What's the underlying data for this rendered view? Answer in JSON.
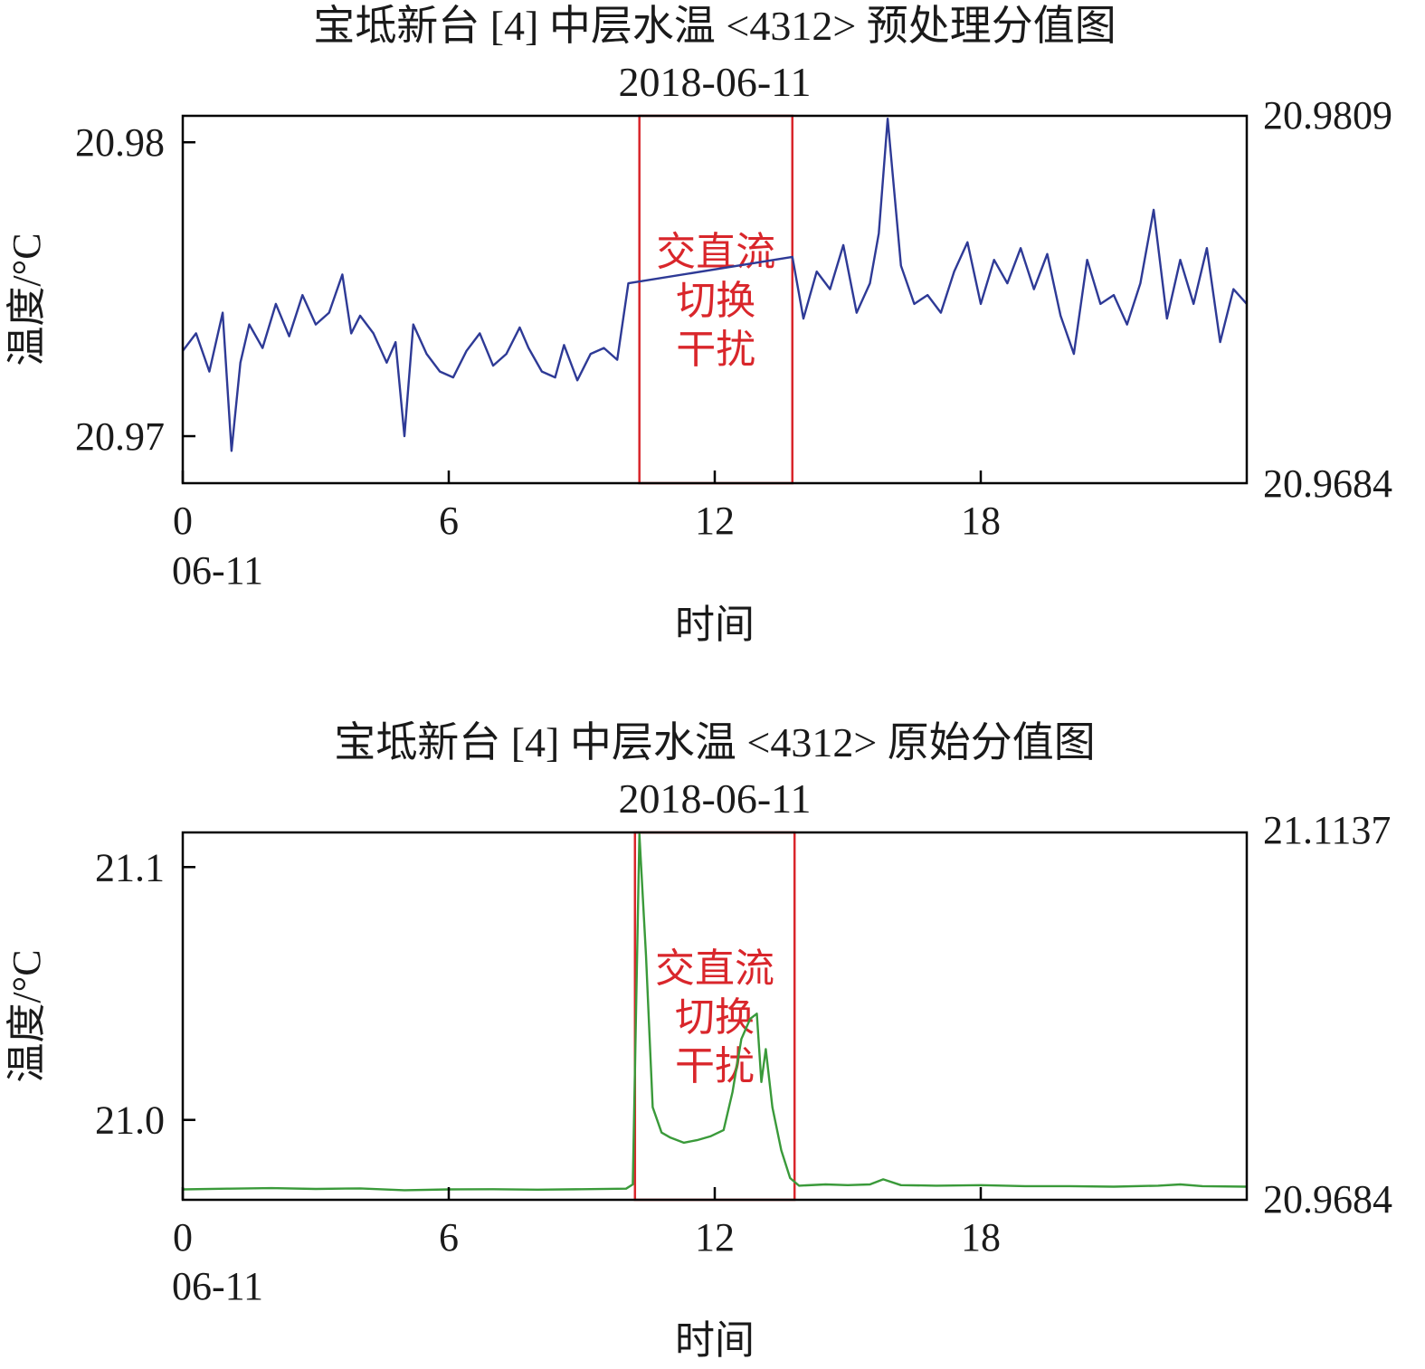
{
  "chart_data": [
    {
      "type": "line",
      "title": "宝坻新台 [4] 中层水温 <4312> 预处理分值图",
      "subtitle": "2018-06-11",
      "xlabel": "时间",
      "ylabel": "温度/°C",
      "x_ticks": [
        "0",
        "6",
        "12",
        "18"
      ],
      "x_tick_values": [
        0,
        6,
        12,
        18
      ],
      "x_date_label": "06-11",
      "y_ticks": [
        "20.98",
        "20.97"
      ],
      "y_tick_values": [
        20.98,
        20.97
      ],
      "xlim": [
        0,
        24
      ],
      "ylim": [
        20.9684,
        20.9809
      ],
      "right_max_label": "20.9809",
      "right_min_label": "20.9684",
      "line_color": "#2e3a96",
      "highlight": {
        "x_range": [
          10.3,
          13.75
        ],
        "label_lines": [
          "交直流",
          "切换",
          "干扰"
        ],
        "color": "#d9262b"
      },
      "series": [
        {
          "x": [
            0,
            0.3,
            0.6,
            0.9,
            1.1,
            1.3,
            1.5,
            1.8,
            2.1,
            2.4,
            2.7,
            3.0,
            3.3,
            3.6,
            3.8,
            4.0,
            4.3,
            4.6,
            4.8,
            5.0,
            5.2,
            5.5,
            5.8,
            6.1,
            6.4,
            6.7,
            7.0,
            7.3,
            7.6,
            7.8,
            8.1,
            8.4,
            8.6,
            8.9,
            9.2,
            9.5,
            9.8,
            10.05,
            13.75,
            14.0,
            14.3,
            14.6,
            14.9,
            15.2,
            15.5,
            15.7,
            15.9,
            16.2,
            16.5,
            16.8,
            17.1,
            17.4,
            17.7,
            18.0,
            18.3,
            18.6,
            18.9,
            19.2,
            19.5,
            19.8,
            20.1,
            20.4,
            20.7,
            21.0,
            21.3,
            21.6,
            21.9,
            22.2,
            22.5,
            22.8,
            23.1,
            23.4,
            23.7,
            24.0
          ],
          "y": [
            20.9729,
            20.9735,
            20.9722,
            20.9742,
            20.9695,
            20.9725,
            20.9738,
            20.973,
            20.9745,
            20.9734,
            20.9748,
            20.9738,
            20.9742,
            20.9755,
            20.9735,
            20.9741,
            20.9735,
            20.9725,
            20.9732,
            20.97,
            20.9738,
            20.9728,
            20.9722,
            20.972,
            20.9729,
            20.9735,
            20.9724,
            20.9728,
            20.9737,
            20.973,
            20.9722,
            20.972,
            20.9731,
            20.9719,
            20.9728,
            20.973,
            20.9726,
            20.9752,
            20.9761,
            20.974,
            20.9756,
            20.975,
            20.9765,
            20.9742,
            20.9752,
            20.9769,
            20.9808,
            20.9758,
            20.9745,
            20.9748,
            20.9742,
            20.9756,
            20.9766,
            20.9745,
            20.976,
            20.9752,
            20.9764,
            20.975,
            20.9762,
            20.9741,
            20.9728,
            20.976,
            20.9745,
            20.9748,
            20.9738,
            20.9752,
            20.9777,
            20.974,
            20.976,
            20.9745,
            20.9764,
            20.9732,
            20.975,
            20.9745
          ]
        }
      ]
    },
    {
      "type": "line",
      "title": "宝坻新台 [4] 中层水温 <4312> 原始分值图",
      "subtitle": "2018-06-11",
      "xlabel": "时间",
      "ylabel": "温度/°C",
      "x_ticks": [
        "0",
        "6",
        "12",
        "18"
      ],
      "x_tick_values": [
        0,
        6,
        12,
        18
      ],
      "x_date_label": "06-11",
      "y_ticks": [
        "21.1",
        "21.0"
      ],
      "y_tick_values": [
        21.1,
        21.0
      ],
      "xlim": [
        0,
        24
      ],
      "ylim": [
        20.9684,
        21.1137
      ],
      "right_max_label": "21.1137",
      "right_min_label": "20.9684",
      "line_color": "#3a9a3a",
      "highlight": {
        "x_range": [
          10.2,
          13.8
        ],
        "label_lines": [
          "交直流",
          "切换",
          "干扰"
        ],
        "color": "#d9262b"
      },
      "series": [
        {
          "x": [
            0,
            1.0,
            2.0,
            3.0,
            4.0,
            5.0,
            6.0,
            7.0,
            8.0,
            9.0,
            10.0,
            10.15,
            10.3,
            10.45,
            10.6,
            10.8,
            11.0,
            11.3,
            11.6,
            11.9,
            12.2,
            12.4,
            12.6,
            12.8,
            12.95,
            13.05,
            13.15,
            13.3,
            13.5,
            13.7,
            13.9,
            14.5,
            15.0,
            15.5,
            15.8,
            16.2,
            17.0,
            18.0,
            19.0,
            20.0,
            21.0,
            22.0,
            22.5,
            23.0,
            24.0
          ],
          "y": [
            20.9725,
            20.9728,
            20.973,
            20.9727,
            20.9729,
            20.9722,
            20.9725,
            20.9726,
            20.9724,
            20.9726,
            20.9728,
            20.9745,
            21.113,
            21.065,
            21.005,
            20.995,
            20.993,
            20.991,
            20.992,
            20.9935,
            20.996,
            21.011,
            21.032,
            21.04,
            21.042,
            21.015,
            21.028,
            21.005,
            20.988,
            20.977,
            20.974,
            20.9745,
            20.9742,
            20.9745,
            20.9765,
            20.9742,
            20.974,
            20.9742,
            20.9738,
            20.9738,
            20.9736,
            20.974,
            20.9745,
            20.9738,
            20.9736
          ]
        }
      ]
    }
  ]
}
